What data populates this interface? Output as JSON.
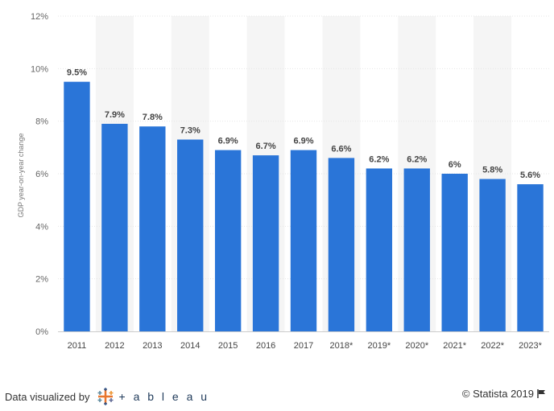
{
  "chart_data": {
    "type": "bar",
    "categories": [
      "2011",
      "2012",
      "2013",
      "2014",
      "2015",
      "2016",
      "2017",
      "2018*",
      "2019*",
      "2020*",
      "2021*",
      "2022*",
      "2023*"
    ],
    "values": [
      9.5,
      7.9,
      7.8,
      7.3,
      6.9,
      6.7,
      6.9,
      6.6,
      6.2,
      6.2,
      6.0,
      5.8,
      5.6
    ],
    "data_labels": [
      "9.5%",
      "7.9%",
      "7.8%",
      "7.3%",
      "6.9%",
      "6.7%",
      "6.9%",
      "6.6%",
      "6.2%",
      "6.2%",
      "6%",
      "5.8%",
      "5.6%"
    ],
    "ylabel": "GDP year-on-year change",
    "ylim": [
      0,
      12
    ],
    "yticks": [
      0,
      2,
      4,
      6,
      8,
      10,
      12
    ],
    "ytick_labels": [
      "0%",
      "2%",
      "4%",
      "6%",
      "8%",
      "10%",
      "12%"
    ],
    "bar_color": "#2a75d8",
    "alt_band_color": "#f5f5f5",
    "grid": true
  },
  "footer": {
    "visualized_by": "Data visualized by",
    "tableau_text": "+ a b l e a u",
    "copyright": "© Statista 2019"
  }
}
